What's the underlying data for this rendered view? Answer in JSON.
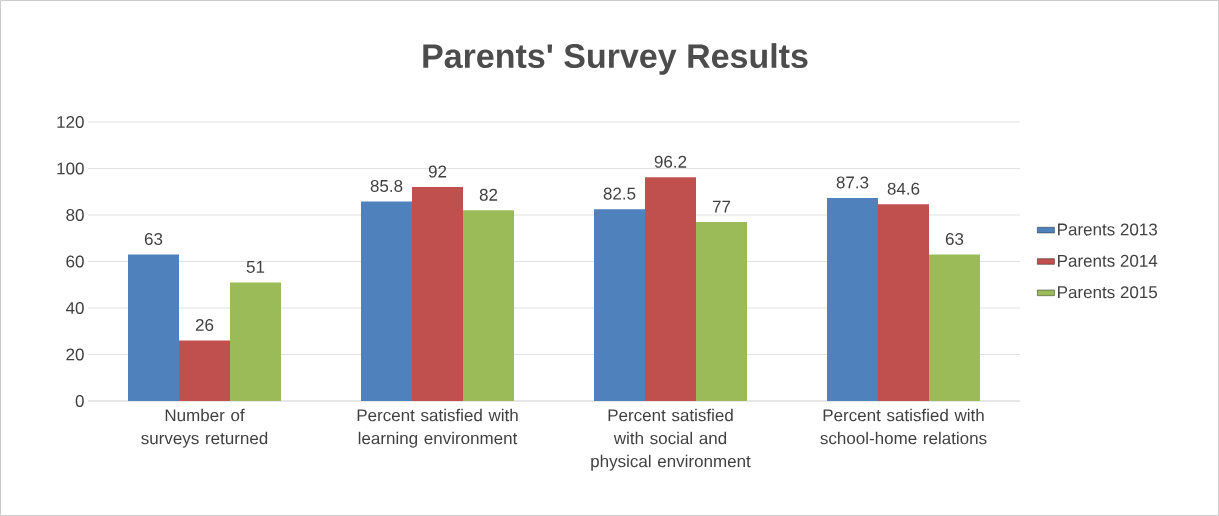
{
  "chart_data": {
    "type": "bar",
    "title": "Parents' Survey Results",
    "categories": [
      "Number of surveys returned",
      "Percent satisfied with learning environment",
      "Percent satisfied with social and physical environment",
      "Percent satisfied with school-home relations"
    ],
    "series": [
      {
        "name": "Parents 2013",
        "color": "#4f81bd",
        "values": [
          63,
          85.8,
          82.5,
          87.3
        ]
      },
      {
        "name": "Parents 2014",
        "color": "#c0504d",
        "values": [
          26,
          92,
          96.2,
          84.6
        ]
      },
      {
        "name": "Parents 2015",
        "color": "#9bbb59",
        "values": [
          51,
          82,
          77,
          63
        ]
      }
    ],
    "ylim": [
      0,
      120
    ],
    "yticks": [
      0,
      20,
      40,
      60,
      80,
      100,
      120
    ],
    "grid": "y",
    "legend": "right",
    "data_labels": true
  }
}
